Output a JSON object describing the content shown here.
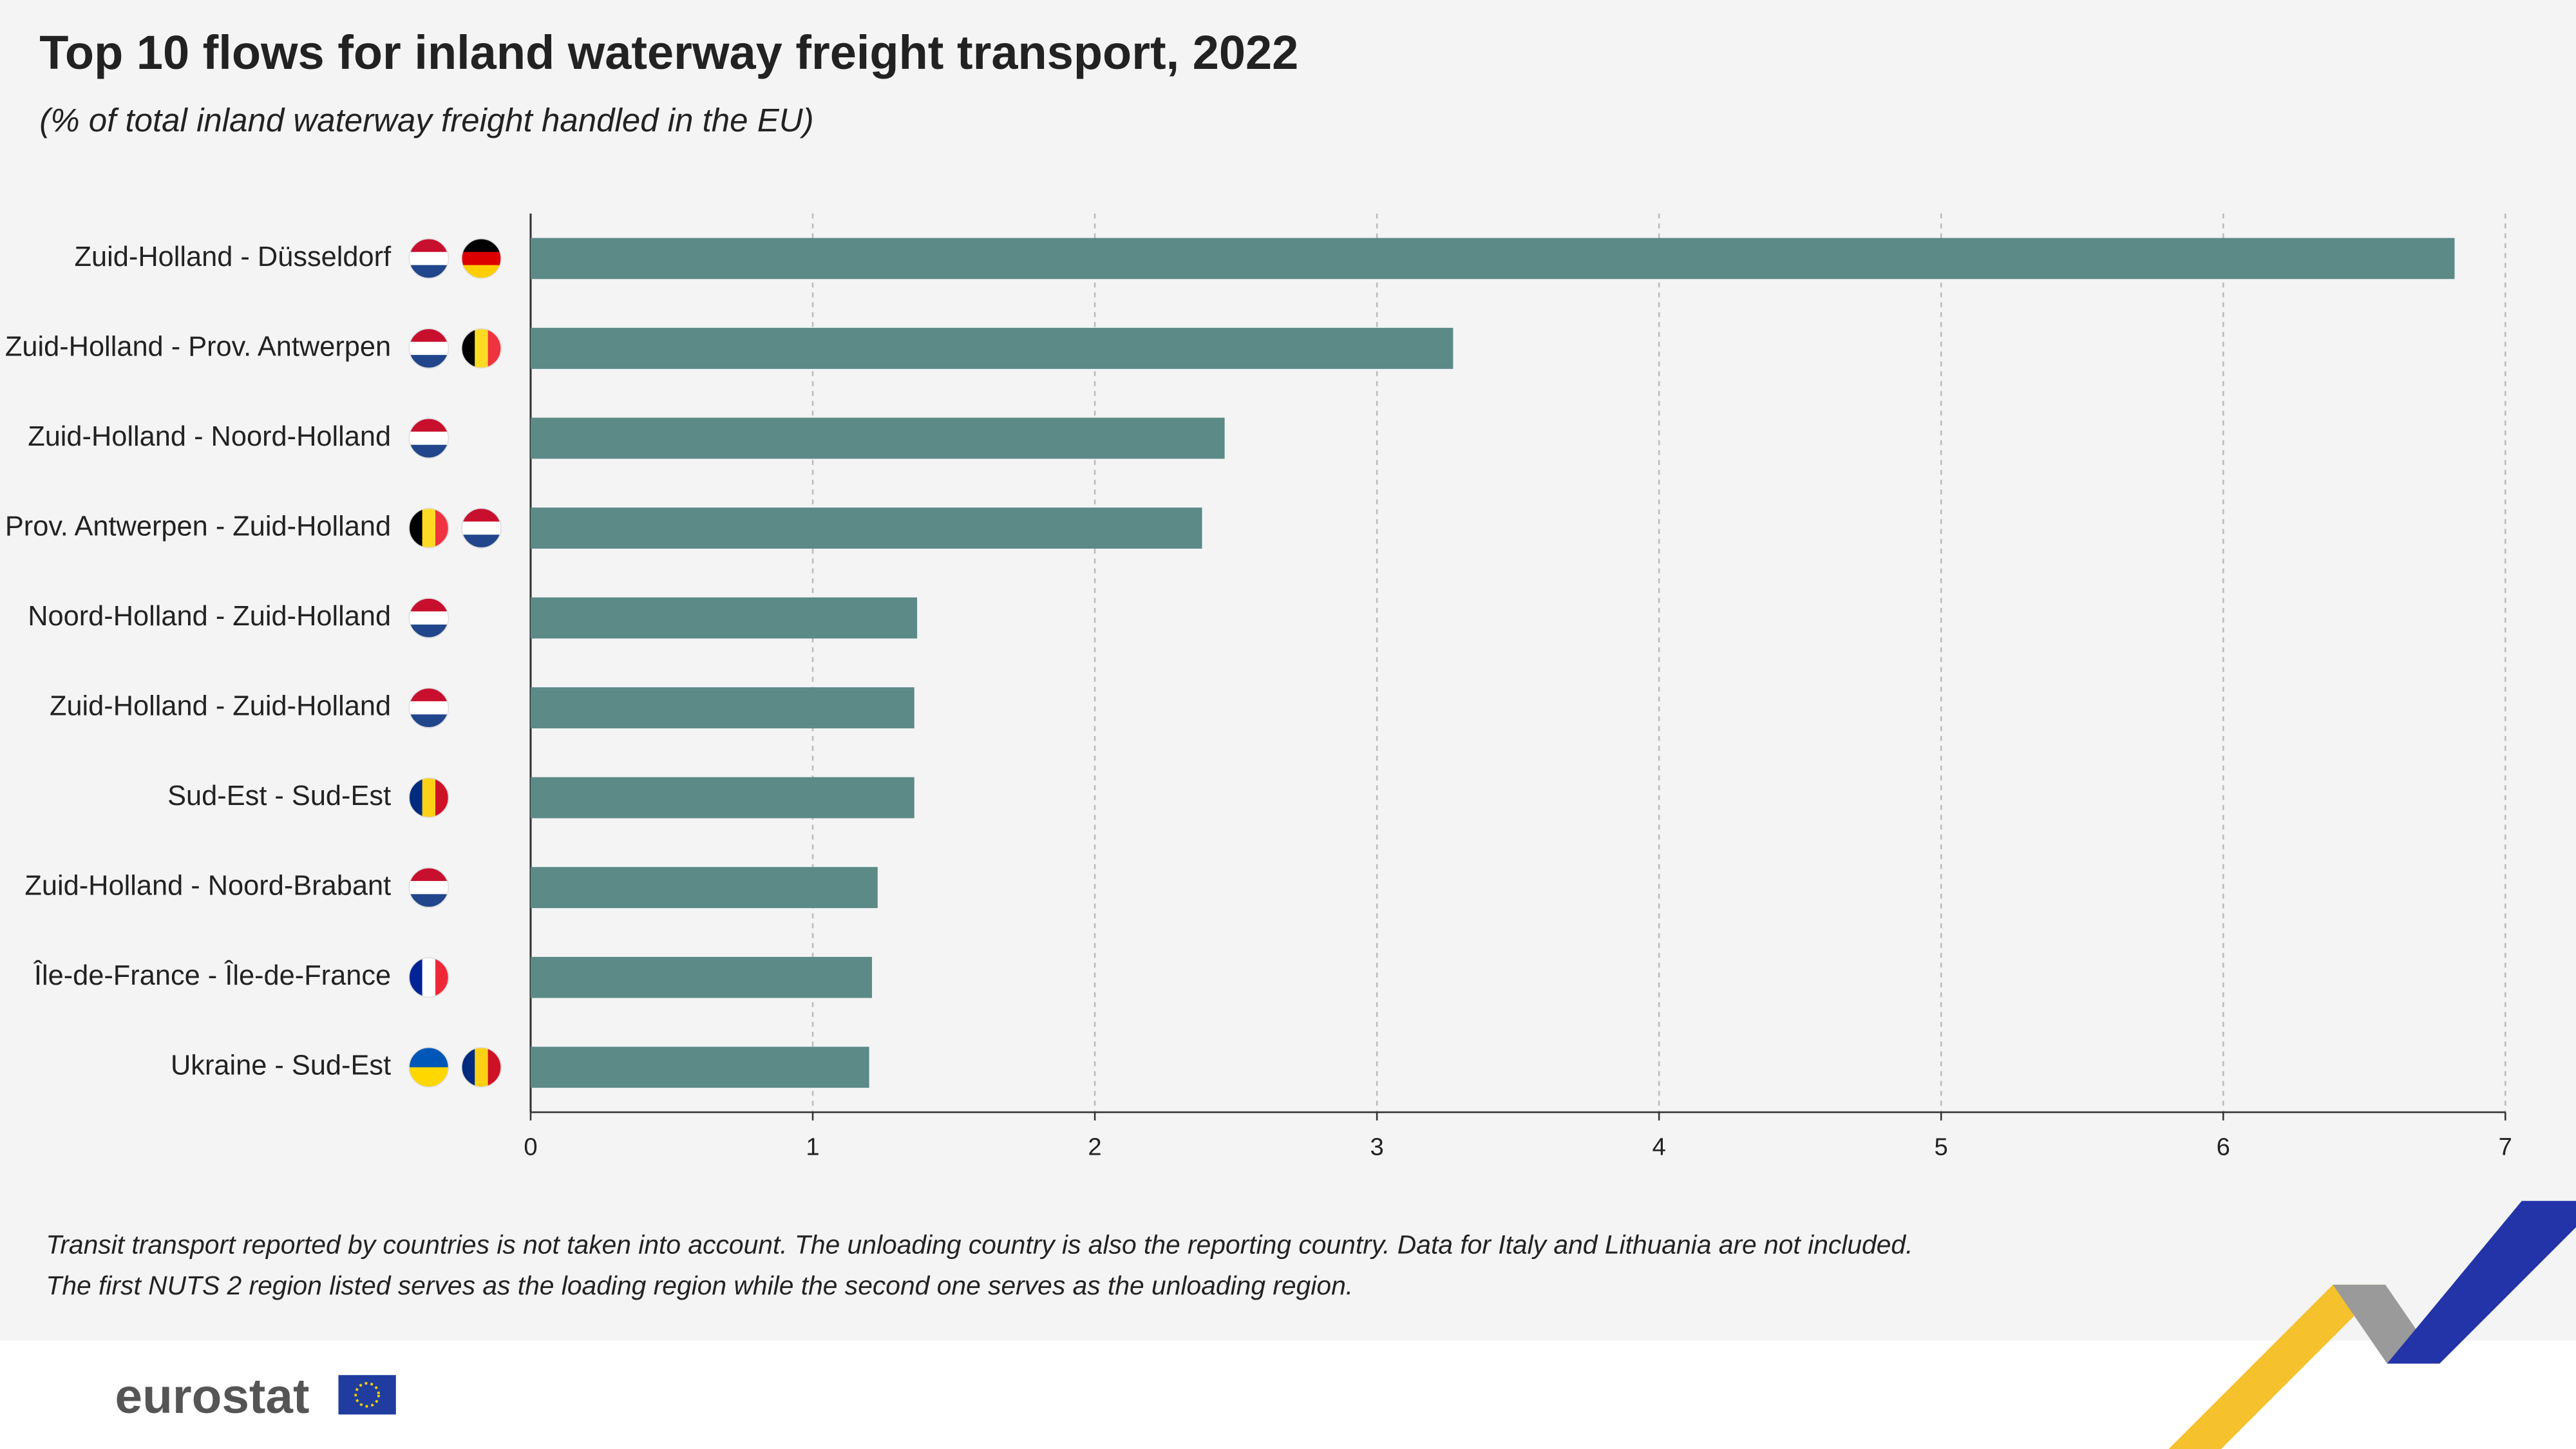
{
  "chart_data": {
    "type": "bar",
    "orientation": "horizontal",
    "title": "Top 10 flows for inland waterway freight transport, 2022",
    "subtitle": "(% of total inland waterway freight handled in the EU)",
    "categories": [
      "Zuid-Holland - Düsseldorf",
      "Zuid-Holland - Prov. Antwerpen",
      "Zuid-Holland - Noord-Holland",
      "Prov. Antwerpen - Zuid-Holland",
      "Noord-Holland - Zuid-Holland",
      "Zuid-Holland - Zuid-Holland",
      "Sud-Est - Sud-Est",
      "Zuid-Holland - Noord-Brabant",
      "Île-de-France - Île-de-France",
      "Ukraine - Sud-Est"
    ],
    "values": [
      6.82,
      3.27,
      2.46,
      2.38,
      1.37,
      1.36,
      1.36,
      1.23,
      1.21,
      1.2
    ],
    "color": "#5b8a87",
    "xlim": [
      0,
      7
    ],
    "xticks": [
      0,
      1,
      2,
      3,
      4,
      5,
      6,
      7
    ],
    "grid": true,
    "notes": [
      "Transit transport reported by countries is not taken into account. The unloading country is also the reporting country. Data for Italy and Lithuania are not included.",
      "The first NUTS 2 region listed serves as the loading region while the second one serves as the unloading region."
    ],
    "source": "eurostat"
  }
}
